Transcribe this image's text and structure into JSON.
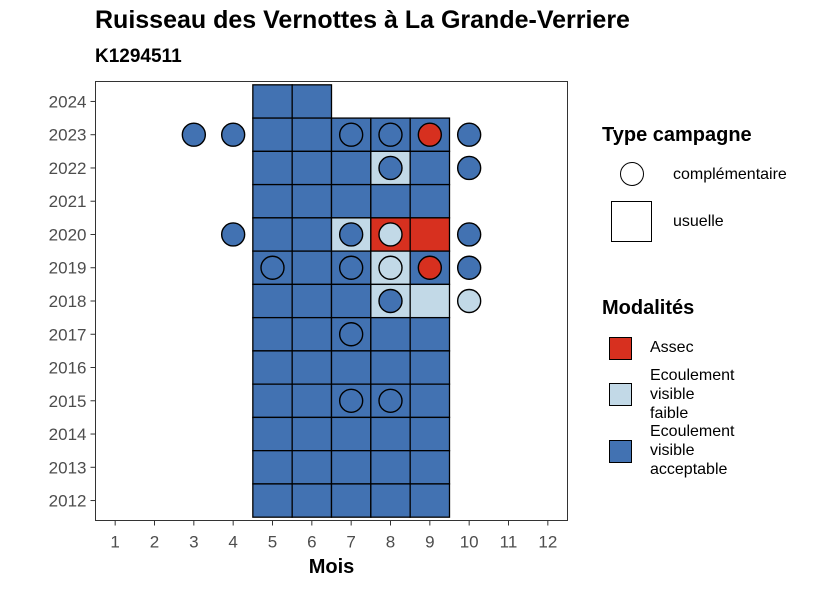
{
  "title": "Ruisseau des Vernottes à La Grande-Verriere",
  "subtitle": "K1294511",
  "colors": {
    "Assec": "#d7301f",
    "Ecoulement visible faible": "#c2d9e7",
    "Ecoulement visible acceptable": "#4272b2"
  },
  "legend": {
    "type_title": "Type campagne",
    "type_items": [
      "complémentaire",
      "usuelle"
    ],
    "mod_title": "Modalités",
    "mod_items": [
      {
        "label": "Assec",
        "text": "Assec"
      },
      {
        "label": "Ecoulement visible faible",
        "text": "Ecoulement\nvisible\nfaible"
      },
      {
        "label": "Ecoulement visible acceptable",
        "text": "Ecoulement\nvisible\nacceptable"
      }
    ]
  },
  "chart_data": {
    "type": "heatmap",
    "xlabel": "Mois",
    "ylabel": "",
    "x_ticks": [
      1,
      2,
      3,
      4,
      5,
      6,
      7,
      8,
      9,
      10,
      11,
      12
    ],
    "y_ticks": [
      2012,
      2013,
      2014,
      2015,
      2016,
      2017,
      2018,
      2019,
      2020,
      2021,
      2022,
      2023,
      2024
    ],
    "xlim": [
      0.5,
      12.5
    ],
    "ylim": [
      2011.4,
      2024.6
    ],
    "usuelle": [
      {
        "month": 5,
        "year": 2024,
        "modalite": "Ecoulement visible acceptable"
      },
      {
        "month": 6,
        "year": 2024,
        "modalite": "Ecoulement visible acceptable"
      },
      {
        "month": 5,
        "year": 2023,
        "modalite": "Ecoulement visible acceptable"
      },
      {
        "month": 6,
        "year": 2023,
        "modalite": "Ecoulement visible acceptable"
      },
      {
        "month": 7,
        "year": 2023,
        "modalite": "Ecoulement visible acceptable"
      },
      {
        "month": 8,
        "year": 2023,
        "modalite": "Ecoulement visible acceptable"
      },
      {
        "month": 9,
        "year": 2023,
        "modalite": "Ecoulement visible acceptable"
      },
      {
        "month": 5,
        "year": 2022,
        "modalite": "Ecoulement visible acceptable"
      },
      {
        "month": 6,
        "year": 2022,
        "modalite": "Ecoulement visible acceptable"
      },
      {
        "month": 7,
        "year": 2022,
        "modalite": "Ecoulement visible acceptable"
      },
      {
        "month": 8,
        "year": 2022,
        "modalite": "Ecoulement visible faible"
      },
      {
        "month": 9,
        "year": 2022,
        "modalite": "Ecoulement visible acceptable"
      },
      {
        "month": 5,
        "year": 2021,
        "modalite": "Ecoulement visible acceptable"
      },
      {
        "month": 6,
        "year": 2021,
        "modalite": "Ecoulement visible acceptable"
      },
      {
        "month": 7,
        "year": 2021,
        "modalite": "Ecoulement visible acceptable"
      },
      {
        "month": 8,
        "year": 2021,
        "modalite": "Ecoulement visible acceptable"
      },
      {
        "month": 9,
        "year": 2021,
        "modalite": "Ecoulement visible acceptable"
      },
      {
        "month": 5,
        "year": 2020,
        "modalite": "Ecoulement visible acceptable"
      },
      {
        "month": 6,
        "year": 2020,
        "modalite": "Ecoulement visible acceptable"
      },
      {
        "month": 7,
        "year": 2020,
        "modalite": "Ecoulement visible faible"
      },
      {
        "month": 8,
        "year": 2020,
        "modalite": "Assec"
      },
      {
        "month": 9,
        "year": 2020,
        "modalite": "Assec"
      },
      {
        "month": 5,
        "year": 2019,
        "modalite": "Ecoulement visible acceptable"
      },
      {
        "month": 6,
        "year": 2019,
        "modalite": "Ecoulement visible acceptable"
      },
      {
        "month": 7,
        "year": 2019,
        "modalite": "Ecoulement visible acceptable"
      },
      {
        "month": 8,
        "year": 2019,
        "modalite": "Ecoulement visible faible"
      },
      {
        "month": 9,
        "year": 2019,
        "modalite": "Ecoulement visible acceptable"
      },
      {
        "month": 5,
        "year": 2018,
        "modalite": "Ecoulement visible acceptable"
      },
      {
        "month": 6,
        "year": 2018,
        "modalite": "Ecoulement visible acceptable"
      },
      {
        "month": 7,
        "year": 2018,
        "modalite": "Ecoulement visible acceptable"
      },
      {
        "month": 8,
        "year": 2018,
        "modalite": "Ecoulement visible faible"
      },
      {
        "month": 9,
        "year": 2018,
        "modalite": "Ecoulement visible faible"
      },
      {
        "month": 5,
        "year": 2017,
        "modalite": "Ecoulement visible acceptable"
      },
      {
        "month": 6,
        "year": 2017,
        "modalite": "Ecoulement visible acceptable"
      },
      {
        "month": 7,
        "year": 2017,
        "modalite": "Ecoulement visible acceptable"
      },
      {
        "month": 8,
        "year": 2017,
        "modalite": "Ecoulement visible acceptable"
      },
      {
        "month": 9,
        "year": 2017,
        "modalite": "Ecoulement visible acceptable"
      },
      {
        "month": 5,
        "year": 2016,
        "modalite": "Ecoulement visible acceptable"
      },
      {
        "month": 6,
        "year": 2016,
        "modalite": "Ecoulement visible acceptable"
      },
      {
        "month": 7,
        "year": 2016,
        "modalite": "Ecoulement visible acceptable"
      },
      {
        "month": 8,
        "year": 2016,
        "modalite": "Ecoulement visible acceptable"
      },
      {
        "month": 9,
        "year": 2016,
        "modalite": "Ecoulement visible acceptable"
      },
      {
        "month": 5,
        "year": 2015,
        "modalite": "Ecoulement visible acceptable"
      },
      {
        "month": 6,
        "year": 2015,
        "modalite": "Ecoulement visible acceptable"
      },
      {
        "month": 7,
        "year": 2015,
        "modalite": "Ecoulement visible acceptable"
      },
      {
        "month": 8,
        "year": 2015,
        "modalite": "Ecoulement visible acceptable"
      },
      {
        "month": 9,
        "year": 2015,
        "modalite": "Ecoulement visible acceptable"
      },
      {
        "month": 5,
        "year": 2014,
        "modalite": "Ecoulement visible acceptable"
      },
      {
        "month": 6,
        "year": 2014,
        "modalite": "Ecoulement visible acceptable"
      },
      {
        "month": 7,
        "year": 2014,
        "modalite": "Ecoulement visible acceptable"
      },
      {
        "month": 8,
        "year": 2014,
        "modalite": "Ecoulement visible acceptable"
      },
      {
        "month": 9,
        "year": 2014,
        "modalite": "Ecoulement visible acceptable"
      },
      {
        "month": 5,
        "year": 2013,
        "modalite": "Ecoulement visible acceptable"
      },
      {
        "month": 6,
        "year": 2013,
        "modalite": "Ecoulement visible acceptable"
      },
      {
        "month": 7,
        "year": 2013,
        "modalite": "Ecoulement visible acceptable"
      },
      {
        "month": 8,
        "year": 2013,
        "modalite": "Ecoulement visible acceptable"
      },
      {
        "month": 9,
        "year": 2013,
        "modalite": "Ecoulement visible acceptable"
      },
      {
        "month": 5,
        "year": 2012,
        "modalite": "Ecoulement visible acceptable"
      },
      {
        "month": 6,
        "year": 2012,
        "modalite": "Ecoulement visible acceptable"
      },
      {
        "month": 7,
        "year": 2012,
        "modalite": "Ecoulement visible acceptable"
      },
      {
        "month": 8,
        "year": 2012,
        "modalite": "Ecoulement visible acceptable"
      },
      {
        "month": 9,
        "year": 2012,
        "modalite": "Ecoulement visible acceptable"
      }
    ],
    "complementaire": [
      {
        "month": 3,
        "year": 2023,
        "modalite": "Ecoulement visible acceptable"
      },
      {
        "month": 4,
        "year": 2023,
        "modalite": "Ecoulement visible acceptable"
      },
      {
        "month": 7,
        "year": 2023,
        "modalite": "Ecoulement visible acceptable"
      },
      {
        "month": 8,
        "year": 2023,
        "modalite": "Ecoulement visible acceptable"
      },
      {
        "month": 9,
        "year": 2023,
        "modalite": "Assec"
      },
      {
        "month": 10,
        "year": 2023,
        "modalite": "Ecoulement visible acceptable"
      },
      {
        "month": 8,
        "year": 2022,
        "modalite": "Ecoulement visible acceptable"
      },
      {
        "month": 10,
        "year": 2022,
        "modalite": "Ecoulement visible acceptable"
      },
      {
        "month": 4,
        "year": 2020,
        "modalite": "Ecoulement visible acceptable"
      },
      {
        "month": 7,
        "year": 2020,
        "modalite": "Ecoulement visible acceptable"
      },
      {
        "month": 8,
        "year": 2020,
        "modalite": "Ecoulement visible faible"
      },
      {
        "month": 10,
        "year": 2020,
        "modalite": "Ecoulement visible acceptable"
      },
      {
        "month": 5,
        "year": 2019,
        "modalite": "Ecoulement visible acceptable"
      },
      {
        "month": 7,
        "year": 2019,
        "modalite": "Ecoulement visible acceptable"
      },
      {
        "month": 8,
        "year": 2019,
        "modalite": "Ecoulement visible faible"
      },
      {
        "month": 9,
        "year": 2019,
        "modalite": "Assec"
      },
      {
        "month": 10,
        "year": 2019,
        "modalite": "Ecoulement visible acceptable"
      },
      {
        "month": 8,
        "year": 2018,
        "modalite": "Ecoulement visible acceptable"
      },
      {
        "month": 10,
        "year": 2018,
        "modalite": "Ecoulement visible faible"
      },
      {
        "month": 7,
        "year": 2017,
        "modalite": "Ecoulement visible acceptable"
      },
      {
        "month": 7,
        "year": 2015,
        "modalite": "Ecoulement visible acceptable"
      },
      {
        "month": 8,
        "year": 2015,
        "modalite": "Ecoulement visible acceptable"
      }
    ]
  }
}
